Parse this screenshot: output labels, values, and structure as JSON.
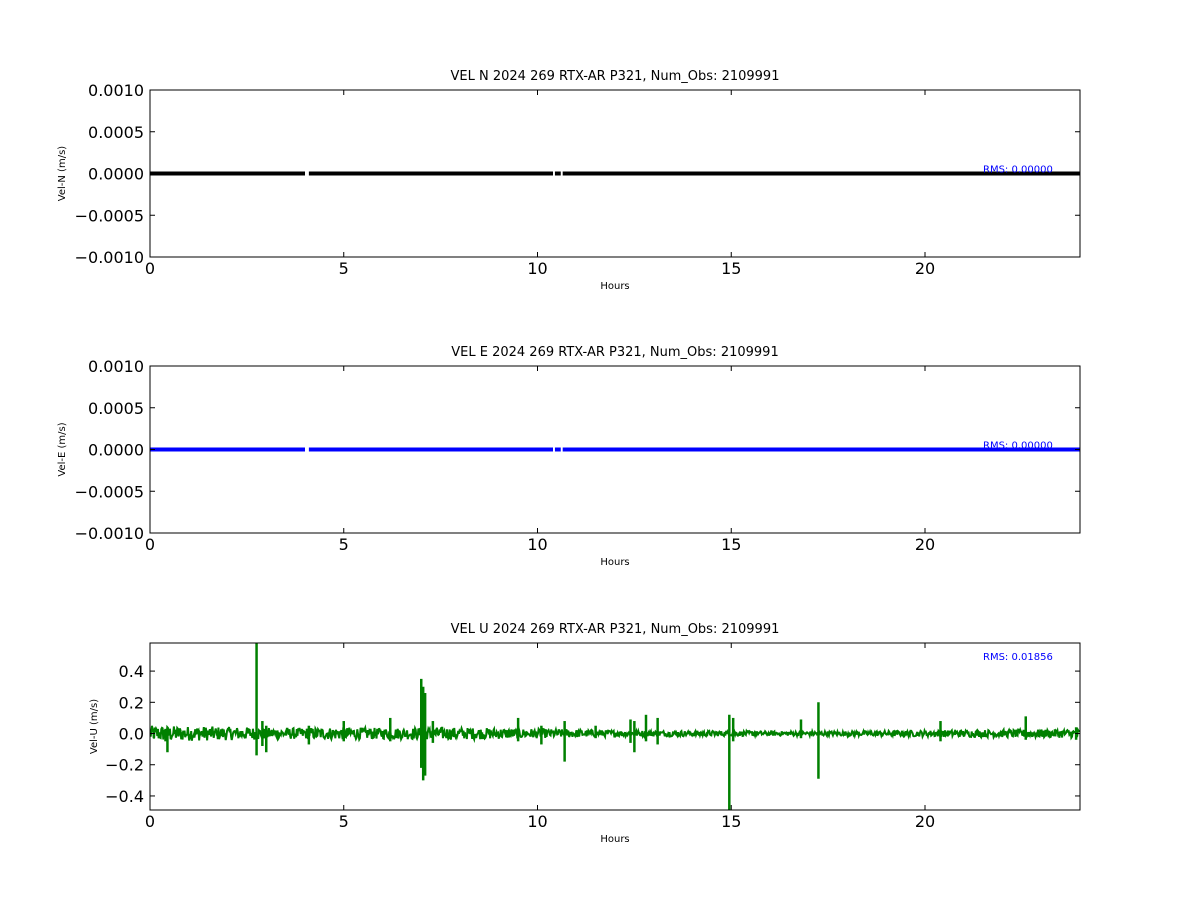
{
  "chart_data": [
    {
      "type": "line",
      "title": "VEL N 2024 269 RTX-AR  P321, Num_Obs: 2109991",
      "xlabel": "Hours",
      "ylabel": "Vel-N (m/s)",
      "xlim": [
        0,
        24
      ],
      "ylim": [
        -0.001,
        0.001
      ],
      "xticks": [
        0,
        5,
        10,
        15,
        20
      ],
      "xtick_labels": [
        "0",
        "5",
        "10",
        "15",
        "20"
      ],
      "yticks": [
        0.001,
        0.0005,
        0,
        -0.0005,
        -0.001
      ],
      "ytick_labels": [
        "0.0010",
        "0.0005",
        "0.0000",
        "−0.0005",
        "−0.0010"
      ],
      "color": "#000000",
      "annotation": "RMS:  0.00000",
      "annotation_color": "#0000ff",
      "grid": false,
      "series": [
        {
          "x": [
            0,
            4.0,
            4.1,
            10.4,
            10.45,
            10.6,
            10.65,
            24
          ],
          "y": [
            0,
            0,
            0,
            0,
            0,
            0,
            0,
            0
          ]
        }
      ]
    },
    {
      "type": "line",
      "title": "VEL E 2024 269 RTX-AR  P321, Num_Obs: 2109991",
      "xlabel": "Hours",
      "ylabel": "Vel-E (m/s)",
      "xlim": [
        0,
        24
      ],
      "ylim": [
        -0.001,
        0.001
      ],
      "xticks": [
        0,
        5,
        10,
        15,
        20
      ],
      "xtick_labels": [
        "0",
        "5",
        "10",
        "15",
        "20"
      ],
      "yticks": [
        0.001,
        0.0005,
        0,
        -0.0005,
        -0.001
      ],
      "ytick_labels": [
        "0.0010",
        "0.0005",
        "0.0000",
        "−0.0005",
        "−0.0010"
      ],
      "color": "#0000ff",
      "annotation": "RMS:  0.00000",
      "annotation_color": "#0000ff",
      "grid": false,
      "series": [
        {
          "x": [
            0,
            4.0,
            4.1,
            10.4,
            10.45,
            10.6,
            10.65,
            24
          ],
          "y": [
            0,
            0,
            0,
            0,
            0,
            0,
            0,
            0
          ]
        }
      ]
    },
    {
      "type": "line",
      "title": "VEL U 2024 269 RTX-AR  P321, Num_Obs: 2109991",
      "xlabel": "Hours",
      "ylabel": "Vel-U (m/s)",
      "xlim": [
        0,
        24
      ],
      "ylim": [
        -0.49,
        0.58
      ],
      "xticks": [
        0,
        5,
        10,
        15,
        20
      ],
      "xtick_labels": [
        "0",
        "5",
        "10",
        "15",
        "20"
      ],
      "yticks": [
        0.4,
        0.2,
        0,
        -0.2,
        -0.4
      ],
      "ytick_labels": [
        "0.4",
        "0.2",
        "0.0",
        "−0.2",
        "−0.4"
      ],
      "color": "#008000",
      "annotation": "RMS:  0.01856",
      "annotation_color": "#0000ff",
      "grid": false,
      "noise_envelope": [
        [
          0,
          0.05
        ],
        [
          1.5,
          0.045
        ],
        [
          2.5,
          0.04
        ],
        [
          3.5,
          0.035
        ],
        [
          5,
          0.04
        ],
        [
          6,
          0.035
        ],
        [
          7.5,
          0.04
        ],
        [
          9,
          0.035
        ],
        [
          10,
          0.03
        ],
        [
          11,
          0.025
        ],
        [
          12,
          0.02
        ],
        [
          14,
          0.018
        ],
        [
          16,
          0.015
        ],
        [
          18,
          0.015
        ],
        [
          20,
          0.02
        ],
        [
          22,
          0.025
        ],
        [
          24,
          0.028
        ]
      ],
      "spikes": [
        {
          "x": 0.1,
          "min": -0.03,
          "max": 0.03
        },
        {
          "x": 0.4,
          "min": -0.05,
          "max": 0.03
        },
        {
          "x": 0.45,
          "min": -0.12,
          "max": 0.03
        },
        {
          "x": 2.75,
          "min": -0.14,
          "max": 0.58
        },
        {
          "x": 2.9,
          "min": -0.08,
          "max": 0.08
        },
        {
          "x": 3.0,
          "min": -0.12,
          "max": 0.05
        },
        {
          "x": 4.1,
          "min": -0.07,
          "max": 0.05
        },
        {
          "x": 5.0,
          "min": -0.05,
          "max": 0.08
        },
        {
          "x": 6.2,
          "min": -0.05,
          "max": 0.1
        },
        {
          "x": 7.0,
          "min": -0.22,
          "max": 0.35
        },
        {
          "x": 7.05,
          "min": -0.3,
          "max": 0.3
        },
        {
          "x": 7.1,
          "min": -0.27,
          "max": 0.26
        },
        {
          "x": 7.3,
          "min": -0.06,
          "max": 0.08
        },
        {
          "x": 9.5,
          "min": -0.05,
          "max": 0.1
        },
        {
          "x": 10.1,
          "min": -0.07,
          "max": 0.05
        },
        {
          "x": 10.7,
          "min": -0.18,
          "max": 0.08
        },
        {
          "x": 11.5,
          "min": -0.03,
          "max": 0.05
        },
        {
          "x": 12.4,
          "min": -0.06,
          "max": 0.09
        },
        {
          "x": 12.5,
          "min": -0.12,
          "max": 0.08
        },
        {
          "x": 12.8,
          "min": -0.05,
          "max": 0.12
        },
        {
          "x": 13.1,
          "min": -0.07,
          "max": 0.1
        },
        {
          "x": 14.95,
          "min": -0.49,
          "max": 0.12
        },
        {
          "x": 15.05,
          "min": -0.05,
          "max": 0.1
        },
        {
          "x": 16.8,
          "min": -0.03,
          "max": 0.09
        },
        {
          "x": 17.25,
          "min": -0.29,
          "max": 0.2
        },
        {
          "x": 20.4,
          "min": -0.05,
          "max": 0.08
        },
        {
          "x": 22.6,
          "min": -0.04,
          "max": 0.11
        },
        {
          "x": 23.9,
          "min": -0.04,
          "max": 0.04
        }
      ]
    }
  ]
}
